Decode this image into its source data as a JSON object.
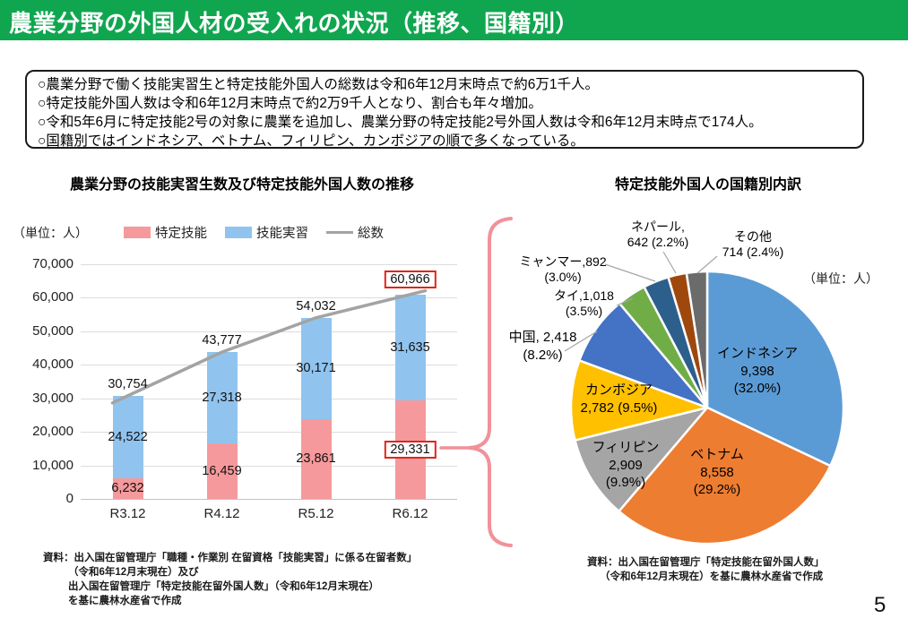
{
  "page": {
    "title": "農業分野の外国人材の受入れの状況（推移、国籍別）",
    "page_number": "5"
  },
  "summary": {
    "bullets": [
      "○農業分野で働く技能実習生と特定技能外国人の総数は令和6年12月末時点で約6万1千人。",
      "○特定技能外国人数は令和6年12月末時点で約2万9千人となり、割合も年々増加。",
      "○令和5年6月に特定技能2号の対象に農業を追加し、農業分野の特定技能2号外国人数は令和6年12月末時点で174人。",
      "○国籍別ではインドネシア、ベトナム、フィリピン、カンボジアの順で多くなっている。"
    ]
  },
  "bar_section": {
    "title": "農業分野の技能実習生数及び特定技能外国人数の推移",
    "unit_label": "（単位：人）",
    "source_lines": [
      "資料：出入国在留管理庁「職種・作業別 在留資格「技能実習」に係る在留者数」",
      "（令和6年12月末現在）及び",
      "出入国在留管理庁「特定技能在留外国人数」（令和6年12月末現在）",
      "を基に農林水産省で作成"
    ]
  },
  "pie_section": {
    "title": "特定技能外国人の国籍別内訳",
    "unit_label": "（単位：人）",
    "source_lines": [
      "資料：出入国在留管理庁「特定技能在留外国人数」",
      "（令和6年12月末現在）を基に農林水産省で作成"
    ]
  },
  "chart_data": [
    {
      "type": "bar",
      "subtype": "stacked_bars_with_total_line",
      "title": "農業分野の技能実習生数及び特定技能外国人数の推移",
      "unit": "（単位：人）",
      "categories": [
        "R3.12",
        "R4.12",
        "R5.12",
        "R6.12"
      ],
      "series": [
        {
          "name": "特定技能",
          "role": "bar-bottom",
          "color": "#f6999c",
          "values": [
            6232,
            16459,
            23861,
            29331
          ]
        },
        {
          "name": "技能実習",
          "role": "bar-top",
          "color": "#90c4ef",
          "values": [
            24522,
            27318,
            30171,
            31635
          ]
        },
        {
          "name": "総数",
          "role": "line",
          "color": "#a3a3a3",
          "values": [
            30754,
            43777,
            54032,
            60966
          ]
        }
      ],
      "ylim": [
        0,
        70000
      ],
      "ytick_interval": 10000,
      "grid": true,
      "legend_position": "top",
      "highlighted_category_index": 3,
      "highlight_box_color": "#e0251b"
    },
    {
      "type": "pie",
      "title": "特定技能外国人の国籍別内訳",
      "unit": "（単位：人）",
      "total": 29331,
      "start_angle": "12-o-clock",
      "direction": "clockwise",
      "slices": [
        {
          "label": "インドネシア",
          "value": 9398,
          "pct": "32.0%",
          "color": "#5b9bd5",
          "display_lines": [
            "インドネシア",
            "9,398",
            "(32.0%)"
          ]
        },
        {
          "label": "ベトナム",
          "value": 8558,
          "pct": "29.2%",
          "color": "#ed7d31",
          "display_lines": [
            "ベトナム",
            "8,558",
            "(29.2%)"
          ]
        },
        {
          "label": "フィリピン",
          "value": 2909,
          "pct": "9.9%",
          "color": "#a5a5a5",
          "display_lines": [
            "フィリピン",
            "2,909",
            "(9.9%)"
          ]
        },
        {
          "label": "カンボジア",
          "value": 2782,
          "pct": "9.5%",
          "color": "#ffc000",
          "display_lines": [
            "カンボジア",
            "2,782 (9.5%)"
          ]
        },
        {
          "label": "中国",
          "value": 2418,
          "pct": "8.2%",
          "color": "#4472c4",
          "display_lines": [
            "中国, 2,418",
            "(8.2%)"
          ]
        },
        {
          "label": "タイ",
          "value": 1018,
          "pct": "3.5%",
          "color": "#70ad47",
          "display_lines": [
            "タイ,1,018",
            "(3.5%)"
          ]
        },
        {
          "label": "ミャンマー",
          "value": 892,
          "pct": "3.0%",
          "color": "#2d5f8d",
          "display_lines": [
            "ミャンマー,892",
            "(3.0%)"
          ]
        },
        {
          "label": "ネパール",
          "value": 642,
          "pct": "2.2%",
          "color": "#9e480e",
          "display_lines": [
            "ネパール,",
            "642 (2.2%)"
          ]
        },
        {
          "label": "その他",
          "value": 714,
          "pct": "2.4%",
          "color": "#6b6b6b",
          "display_lines": [
            "その他",
            "714 (2.4%)"
          ]
        }
      ]
    }
  ]
}
